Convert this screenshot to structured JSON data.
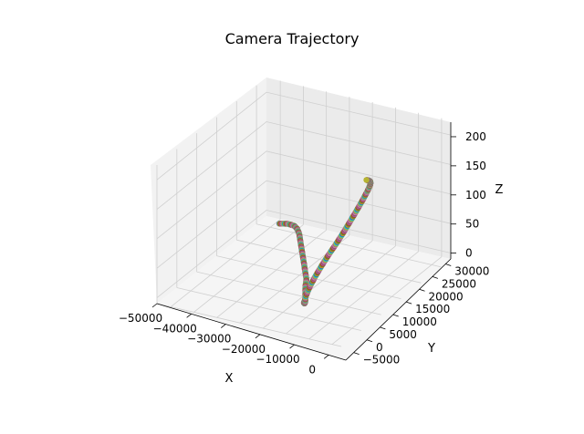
{
  "chart_data": {
    "type": "scatter",
    "projection": "3d",
    "title": "Camera Trajectory",
    "xlabel": "X",
    "ylabel": "Y",
    "zlabel": "Z",
    "xlim": [
      -50000,
      5000
    ],
    "ylim": [
      -8000,
      32000
    ],
    "zlim": [
      -10,
      225
    ],
    "grid": true,
    "x_ticks": [
      -50000,
      -40000,
      -30000,
      -20000,
      -10000,
      0
    ],
    "x_tick_labels": [
      "−50000",
      "−40000",
      "−30000",
      "−20000",
      "−10000",
      "0"
    ],
    "y_ticks": [
      -5000,
      0,
      5000,
      10000,
      15000,
      20000,
      25000,
      30000
    ],
    "y_tick_labels": [
      "−5000",
      "0",
      "5000",
      "10000",
      "15000",
      "20000",
      "25000",
      "30000"
    ],
    "z_ticks": [
      0,
      50,
      100,
      150,
      200
    ],
    "z_tick_labels": [
      "0",
      "50",
      "100",
      "150",
      "200"
    ],
    "path": [
      {
        "x": -100,
        "y": -3000,
        "z": 0
      },
      {
        "x": 500,
        "y": -1500,
        "z": 1
      },
      {
        "x": 0,
        "y": 200,
        "z": 2
      },
      {
        "x": -1500,
        "y": 1500,
        "z": 3
      },
      {
        "x": -4000,
        "y": 3000,
        "z": 4
      },
      {
        "x": -7000,
        "y": 4500,
        "z": 5
      },
      {
        "x": -11000,
        "y": 6500,
        "z": 6
      },
      {
        "x": -15000,
        "y": 8500,
        "z": 7
      },
      {
        "x": -19000,
        "y": 10500,
        "z": 8
      },
      {
        "x": -23000,
        "y": 12500,
        "z": 9
      },
      {
        "x": -27000,
        "y": 14500,
        "z": 10
      },
      {
        "x": -31000,
        "y": 16000,
        "z": 11
      },
      {
        "x": -34500,
        "y": 17500,
        "z": 12
      },
      {
        "x": -38000,
        "y": 19000,
        "z": 14
      },
      {
        "x": -41000,
        "y": 20000,
        "z": 18
      },
      {
        "x": -43000,
        "y": 21000,
        "z": 24
      },
      {
        "x": -44500,
        "y": 21800,
        "z": 32
      },
      {
        "x": -45500,
        "y": 22300,
        "z": 44
      },
      {
        "x": -44500,
        "y": 22700,
        "z": 58
      },
      {
        "x": -43000,
        "y": 23200,
        "z": 72
      },
      {
        "x": -41000,
        "y": 23800,
        "z": 87
      },
      {
        "x": -39000,
        "y": 24500,
        "z": 102
      },
      {
        "x": -37000,
        "y": 25300,
        "z": 117
      },
      {
        "x": -35000,
        "y": 26000,
        "z": 132
      },
      {
        "x": -33000,
        "y": 26700,
        "z": 148
      },
      {
        "x": -31000,
        "y": 27300,
        "z": 163
      },
      {
        "x": -29500,
        "y": 27900,
        "z": 177
      },
      {
        "x": -28500,
        "y": 28400,
        "z": 189
      },
      {
        "x": -28200,
        "y": 28800,
        "z": 198
      },
      {
        "x": -28800,
        "y": 29200,
        "z": 205
      },
      {
        "x": -30000,
        "y": 29600,
        "z": 212
      },
      {
        "x": -31500,
        "y": 29900,
        "z": 218
      },
      {
        "x": -33000,
        "y": 30100,
        "z": 223
      }
    ],
    "marker_colors": [
      "#1f77b4",
      "#ff7f0e",
      "#2ca02c",
      "#d62728",
      "#9467bd",
      "#8c564b",
      "#e377c2",
      "#7f7f7f",
      "#bcbd22",
      "#17becf"
    ]
  }
}
